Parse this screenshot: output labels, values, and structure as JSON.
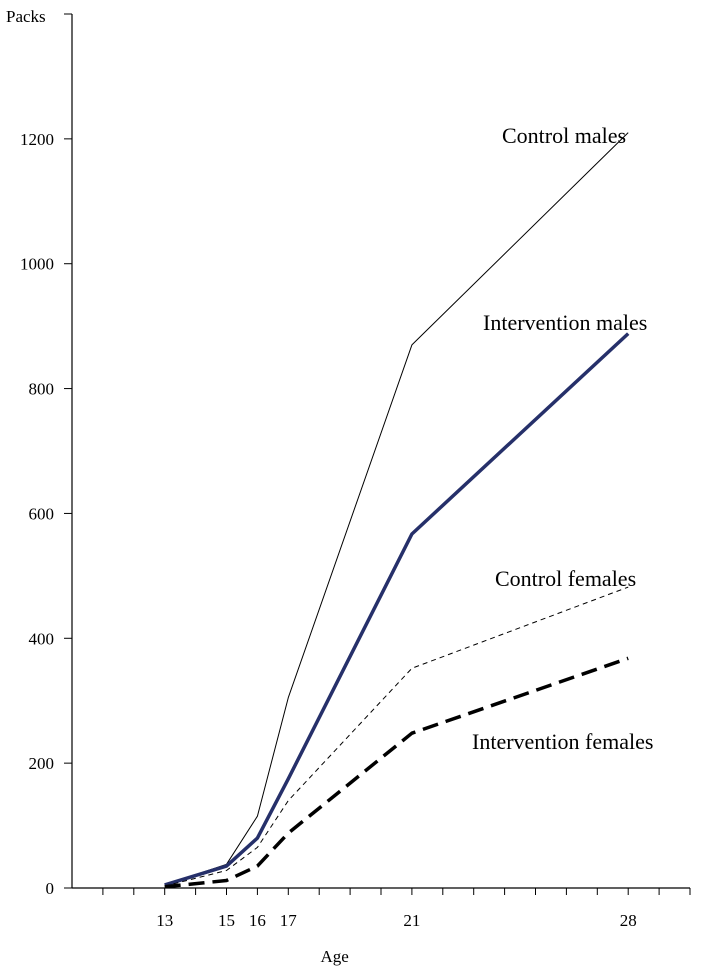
{
  "chart_data": {
    "type": "line",
    "title": "",
    "xlabel": "Age",
    "ylabel": "Packs",
    "xlim": [
      10,
      30
    ],
    "ylim": [
      0,
      1400
    ],
    "x_ticks": [
      13,
      15,
      16,
      17,
      21,
      28
    ],
    "x_tick_labels": [
      "13",
      "15",
      "16",
      "17",
      "21",
      "28"
    ],
    "x_minor_tick_step": 1,
    "y_ticks": [
      0,
      200,
      400,
      600,
      800,
      1000,
      1200
    ],
    "y_tick_labels": [
      "0",
      "200",
      "400",
      "600",
      "800",
      "1000",
      "1200"
    ],
    "grid": false,
    "legend": "labels placed next to lines",
    "series": [
      {
        "name": "Control males",
        "style": "thin-solid",
        "color": "#000000",
        "x": [
          13,
          15,
          16,
          17,
          21,
          28
        ],
        "y": [
          5,
          38,
          115,
          305,
          870,
          1210
        ]
      },
      {
        "name": "Intervention males",
        "style": "thick-solid",
        "color": "#26306a",
        "x": [
          13,
          15,
          16,
          17,
          21,
          28
        ],
        "y": [
          5,
          35,
          80,
          175,
          567,
          888
        ]
      },
      {
        "name": "Control females",
        "style": "thin-dashed",
        "color": "#000000",
        "x": [
          13,
          15,
          16,
          17,
          21,
          28
        ],
        "y": [
          3,
          28,
          65,
          140,
          352,
          482
        ]
      },
      {
        "name": "Intervention females",
        "style": "thick-dashed",
        "color": "#000000",
        "x": [
          13,
          15,
          16,
          17,
          21,
          28
        ],
        "y": [
          2,
          12,
          35,
          88,
          248,
          368
        ]
      }
    ]
  }
}
